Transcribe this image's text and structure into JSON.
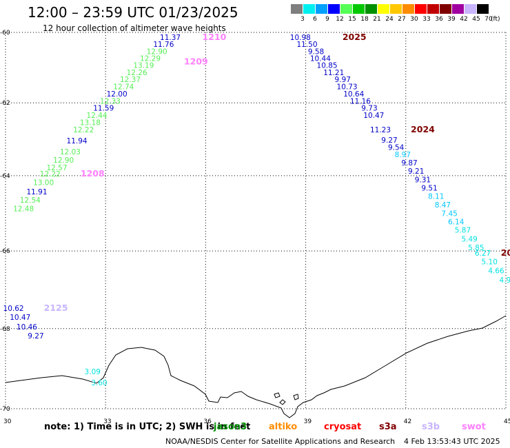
{
  "header": {
    "title": "12:00 – 23:59 UTC 01/23/2025",
    "subtitle": "12 hour collection of altimeter wave heights"
  },
  "legend": {
    "unit": "(ft)",
    "bins": [
      {
        "label": "3",
        "color": "#7f7f7f"
      },
      {
        "label": "6",
        "color": "#00f0f0"
      },
      {
        "label": "9",
        "color": "#00a0ff"
      },
      {
        "label": "12",
        "color": "#0000ff"
      },
      {
        "label": "15",
        "color": "#55ff55"
      },
      {
        "label": "18",
        "color": "#00c800"
      },
      {
        "label": "21",
        "color": "#009000"
      },
      {
        "label": "24",
        "color": "#ffff00"
      },
      {
        "label": "27",
        "color": "#ffc800"
      },
      {
        "label": "30",
        "color": "#ff8c00"
      },
      {
        "label": "33",
        "color": "#ff0000"
      },
      {
        "label": "36",
        "color": "#c00000"
      },
      {
        "label": "39",
        "color": "#800000"
      },
      {
        "label": "42",
        "color": "#a000a0"
      },
      {
        "label": "45",
        "color": "#c8b4ff"
      },
      {
        "label": "70",
        "color": "#000000"
      }
    ]
  },
  "axes": {
    "lat_ticks": [
      "-60",
      "-62",
      "-64",
      "-66",
      "-68",
      "-70"
    ],
    "lon_ticks": [
      "30",
      "33",
      "36",
      "39",
      "42",
      "45"
    ]
  },
  "chart_data": {
    "type": "scatter",
    "title": "12:00 – 23:59 UTC 01/23/2025",
    "xlabel": "",
    "ylabel": "",
    "xlim": [
      30,
      45
    ],
    "ylim": [
      -70,
      -60
    ],
    "grid": true,
    "series": [
      {
        "time_label": "1209",
        "label_color": "#ff80ff",
        "points": [
          {
            "lon": 35.25,
            "lat": -60.22,
            "v": "11.37",
            "c": "#0000c8"
          },
          {
            "lon": 35.05,
            "lat": -60.42,
            "v": "11.76",
            "c": "#0000c8"
          },
          {
            "lon": 34.85,
            "lat": -60.62,
            "v": "12.90",
            "c": "#55ee55"
          },
          {
            "lon": 34.65,
            "lat": -60.82,
            "v": "12.29",
            "c": "#55ee55"
          },
          {
            "lon": 34.45,
            "lat": -61.02,
            "v": "13.19",
            "c": "#55ee55"
          },
          {
            "lon": 34.25,
            "lat": -61.22,
            "v": "12.26",
            "c": "#55ee55"
          },
          {
            "lon": 34.05,
            "lat": -61.42,
            "v": "12.37",
            "c": "#55ee55"
          },
          {
            "lon": 33.85,
            "lat": -61.62,
            "v": "12.74",
            "c": "#55ee55"
          },
          {
            "lon": 33.65,
            "lat": -61.82,
            "v": "12.00",
            "c": "#0000c8"
          },
          {
            "lon": 33.45,
            "lat": -62.02,
            "v": "12.33",
            "c": "#55ee55"
          },
          {
            "lon": 33.25,
            "lat": -62.22,
            "v": "11.59",
            "c": "#0000c8"
          },
          {
            "lon": 33.05,
            "lat": -62.42,
            "v": "12.44",
            "c": "#55ee55"
          },
          {
            "lon": 32.85,
            "lat": -62.62,
            "v": "13.18",
            "c": "#55ee55"
          },
          {
            "lon": 32.65,
            "lat": -62.82,
            "v": "12.22",
            "c": "#55ee55"
          },
          {
            "lon": 32.45,
            "lat": -63.12,
            "v": "11.94",
            "c": "#0000c8"
          },
          {
            "lon": 32.25,
            "lat": -63.42,
            "v": "12.03",
            "c": "#55ee55"
          },
          {
            "lon": 32.05,
            "lat": -63.65,
            "v": "12.90",
            "c": "#55ee55"
          },
          {
            "lon": 31.85,
            "lat": -63.85,
            "v": "12.57",
            "c": "#55ee55"
          },
          {
            "lon": 31.65,
            "lat": -64.02,
            "v": "12.22",
            "c": "#55ee55"
          },
          {
            "lon": 31.45,
            "lat": -64.25,
            "v": "13.00",
            "c": "#55ee55"
          },
          {
            "lon": 31.25,
            "lat": -64.5,
            "v": "11.91",
            "c": "#0000c8"
          },
          {
            "lon": 31.05,
            "lat": -64.72,
            "v": "12.54",
            "c": "#55ee55"
          },
          {
            "lon": 30.85,
            "lat": -64.95,
            "v": "12.48",
            "c": "#55ee55"
          }
        ]
      },
      {
        "time_label": "1208",
        "label_color": "#ff80ff",
        "points": []
      },
      {
        "time_label": "1210",
        "label_color": "#ff80ff",
        "points": []
      },
      {
        "time_label": "2025",
        "label_color": "#800000",
        "points": [
          {
            "lon": 39.15,
            "lat": -60.22,
            "v": "10.98",
            "c": "#0000c8"
          },
          {
            "lon": 39.35,
            "lat": -60.42,
            "v": "11.50",
            "c": "#0000c8"
          },
          {
            "lon": 39.55,
            "lat": -60.62,
            "v": "9.58",
            "c": "#0000c8"
          },
          {
            "lon": 39.75,
            "lat": -60.82,
            "v": "10.44",
            "c": "#0000c8"
          },
          {
            "lon": 39.95,
            "lat": -61.02,
            "v": "10.85",
            "c": "#0000c8"
          },
          {
            "lon": 40.15,
            "lat": -61.22,
            "v": "11.21",
            "c": "#0000c8"
          },
          {
            "lon": 40.35,
            "lat": -61.42,
            "v": "9.97",
            "c": "#0000c8"
          },
          {
            "lon": 40.55,
            "lat": -61.62,
            "v": "10.73",
            "c": "#0000c8"
          },
          {
            "lon": 40.75,
            "lat": -61.82,
            "v": "10.64",
            "c": "#0000c8"
          },
          {
            "lon": 40.95,
            "lat": -62.02,
            "v": "11.16",
            "c": "#0000c8"
          },
          {
            "lon": 41.15,
            "lat": -62.22,
            "v": "9.73",
            "c": "#0000c8"
          },
          {
            "lon": 41.35,
            "lat": -62.42,
            "v": "10.47",
            "c": "#0000c8"
          }
        ]
      },
      {
        "time_label": "2024",
        "label_color": "#800000",
        "points": [
          {
            "lon": 41.55,
            "lat": -62.82,
            "v": "11.23",
            "c": "#0000c8"
          },
          {
            "lon": 41.75,
            "lat": -63.1,
            "v": "9.27",
            "c": "#0000c8"
          },
          {
            "lon": 41.95,
            "lat": -63.3,
            "v": "9.54",
            "c": "#0000c8"
          },
          {
            "lon": 42.15,
            "lat": -63.5,
            "v": "8.97",
            "c": "#00c8ff"
          },
          {
            "lon": 42.35,
            "lat": -63.72,
            "v": "9.87",
            "c": "#0000c8"
          },
          {
            "lon": 42.55,
            "lat": -63.95,
            "v": "9.21",
            "c": "#0000c8"
          },
          {
            "lon": 42.75,
            "lat": -64.18,
            "v": "9.31",
            "c": "#0000c8"
          },
          {
            "lon": 42.95,
            "lat": -64.4,
            "v": "9.51",
            "c": "#0000c8"
          },
          {
            "lon": 43.15,
            "lat": -64.62,
            "v": "8.11",
            "c": "#00c8ff"
          },
          {
            "lon": 43.35,
            "lat": -64.85,
            "v": "8.47",
            "c": "#00c8ff"
          },
          {
            "lon": 43.55,
            "lat": -65.08,
            "v": "7.45",
            "c": "#00c8ff"
          },
          {
            "lon": 43.75,
            "lat": -65.3,
            "v": "6.14",
            "c": "#00c8ff"
          },
          {
            "lon": 43.95,
            "lat": -65.52,
            "v": "5.87",
            "c": "#00e0e0"
          },
          {
            "lon": 44.15,
            "lat": -65.75,
            "v": "5.49",
            "c": "#00e0e0"
          },
          {
            "lon": 44.35,
            "lat": -65.98,
            "v": "5.85",
            "c": "#00e0e0"
          },
          {
            "lon": 44.55,
            "lat": -66.12,
            "v": "6.27",
            "c": "#00e0e0"
          },
          {
            "lon": 44.75,
            "lat": -66.35,
            "v": "5.10",
            "c": "#00e0e0"
          },
          {
            "lon": 44.95,
            "lat": -66.58,
            "v": "4.66",
            "c": "#00e0e0"
          },
          {
            "lon": 45.15,
            "lat": -66.82,
            "v": "4.9",
            "c": "#00e0e0"
          }
        ]
      },
      {
        "time_label": "20",
        "label_color": "#800000",
        "points": []
      },
      {
        "time_label": "2125",
        "label_color": "#c8b4ff",
        "points": [
          {
            "lon": 30.55,
            "lat": -67.55,
            "v": "10.62",
            "c": "#0000c8"
          },
          {
            "lon": 30.75,
            "lat": -67.78,
            "v": "10.47",
            "c": "#0000c8"
          },
          {
            "lon": 30.95,
            "lat": -68.02,
            "v": "10.46",
            "c": "#0000c8"
          },
          {
            "lon": 31.15,
            "lat": -68.25,
            "v": "9.27",
            "c": "#0000c8"
          }
        ]
      },
      {
        "time_label": "",
        "label_color": "",
        "points": [
          {
            "lon": 32.85,
            "lat": -69.15,
            "v": "3.09",
            "c": "#00e0e0"
          },
          {
            "lon": 33.05,
            "lat": -69.42,
            "v": "3.60",
            "c": "#00e0e0"
          }
        ]
      }
    ]
  },
  "footer": {
    "note": "note: 1) Time is in UTC; 2) SWH is in feet",
    "missions": [
      {
        "label": "jason3",
        "color": "#009000"
      },
      {
        "label": "altiko",
        "color": "#ff8c00"
      },
      {
        "label": "cryosat",
        "color": "#ff0000"
      },
      {
        "label": "s3a",
        "color": "#800000"
      },
      {
        "label": "s3b",
        "color": "#c8b4ff"
      },
      {
        "label": "swot",
        "color": "#ff80ff"
      }
    ],
    "credit": "NOAA/NESDIS Center for Satellite Applications and Research",
    "timestamp": "4 Feb 13:53:43 UTC 2025"
  }
}
